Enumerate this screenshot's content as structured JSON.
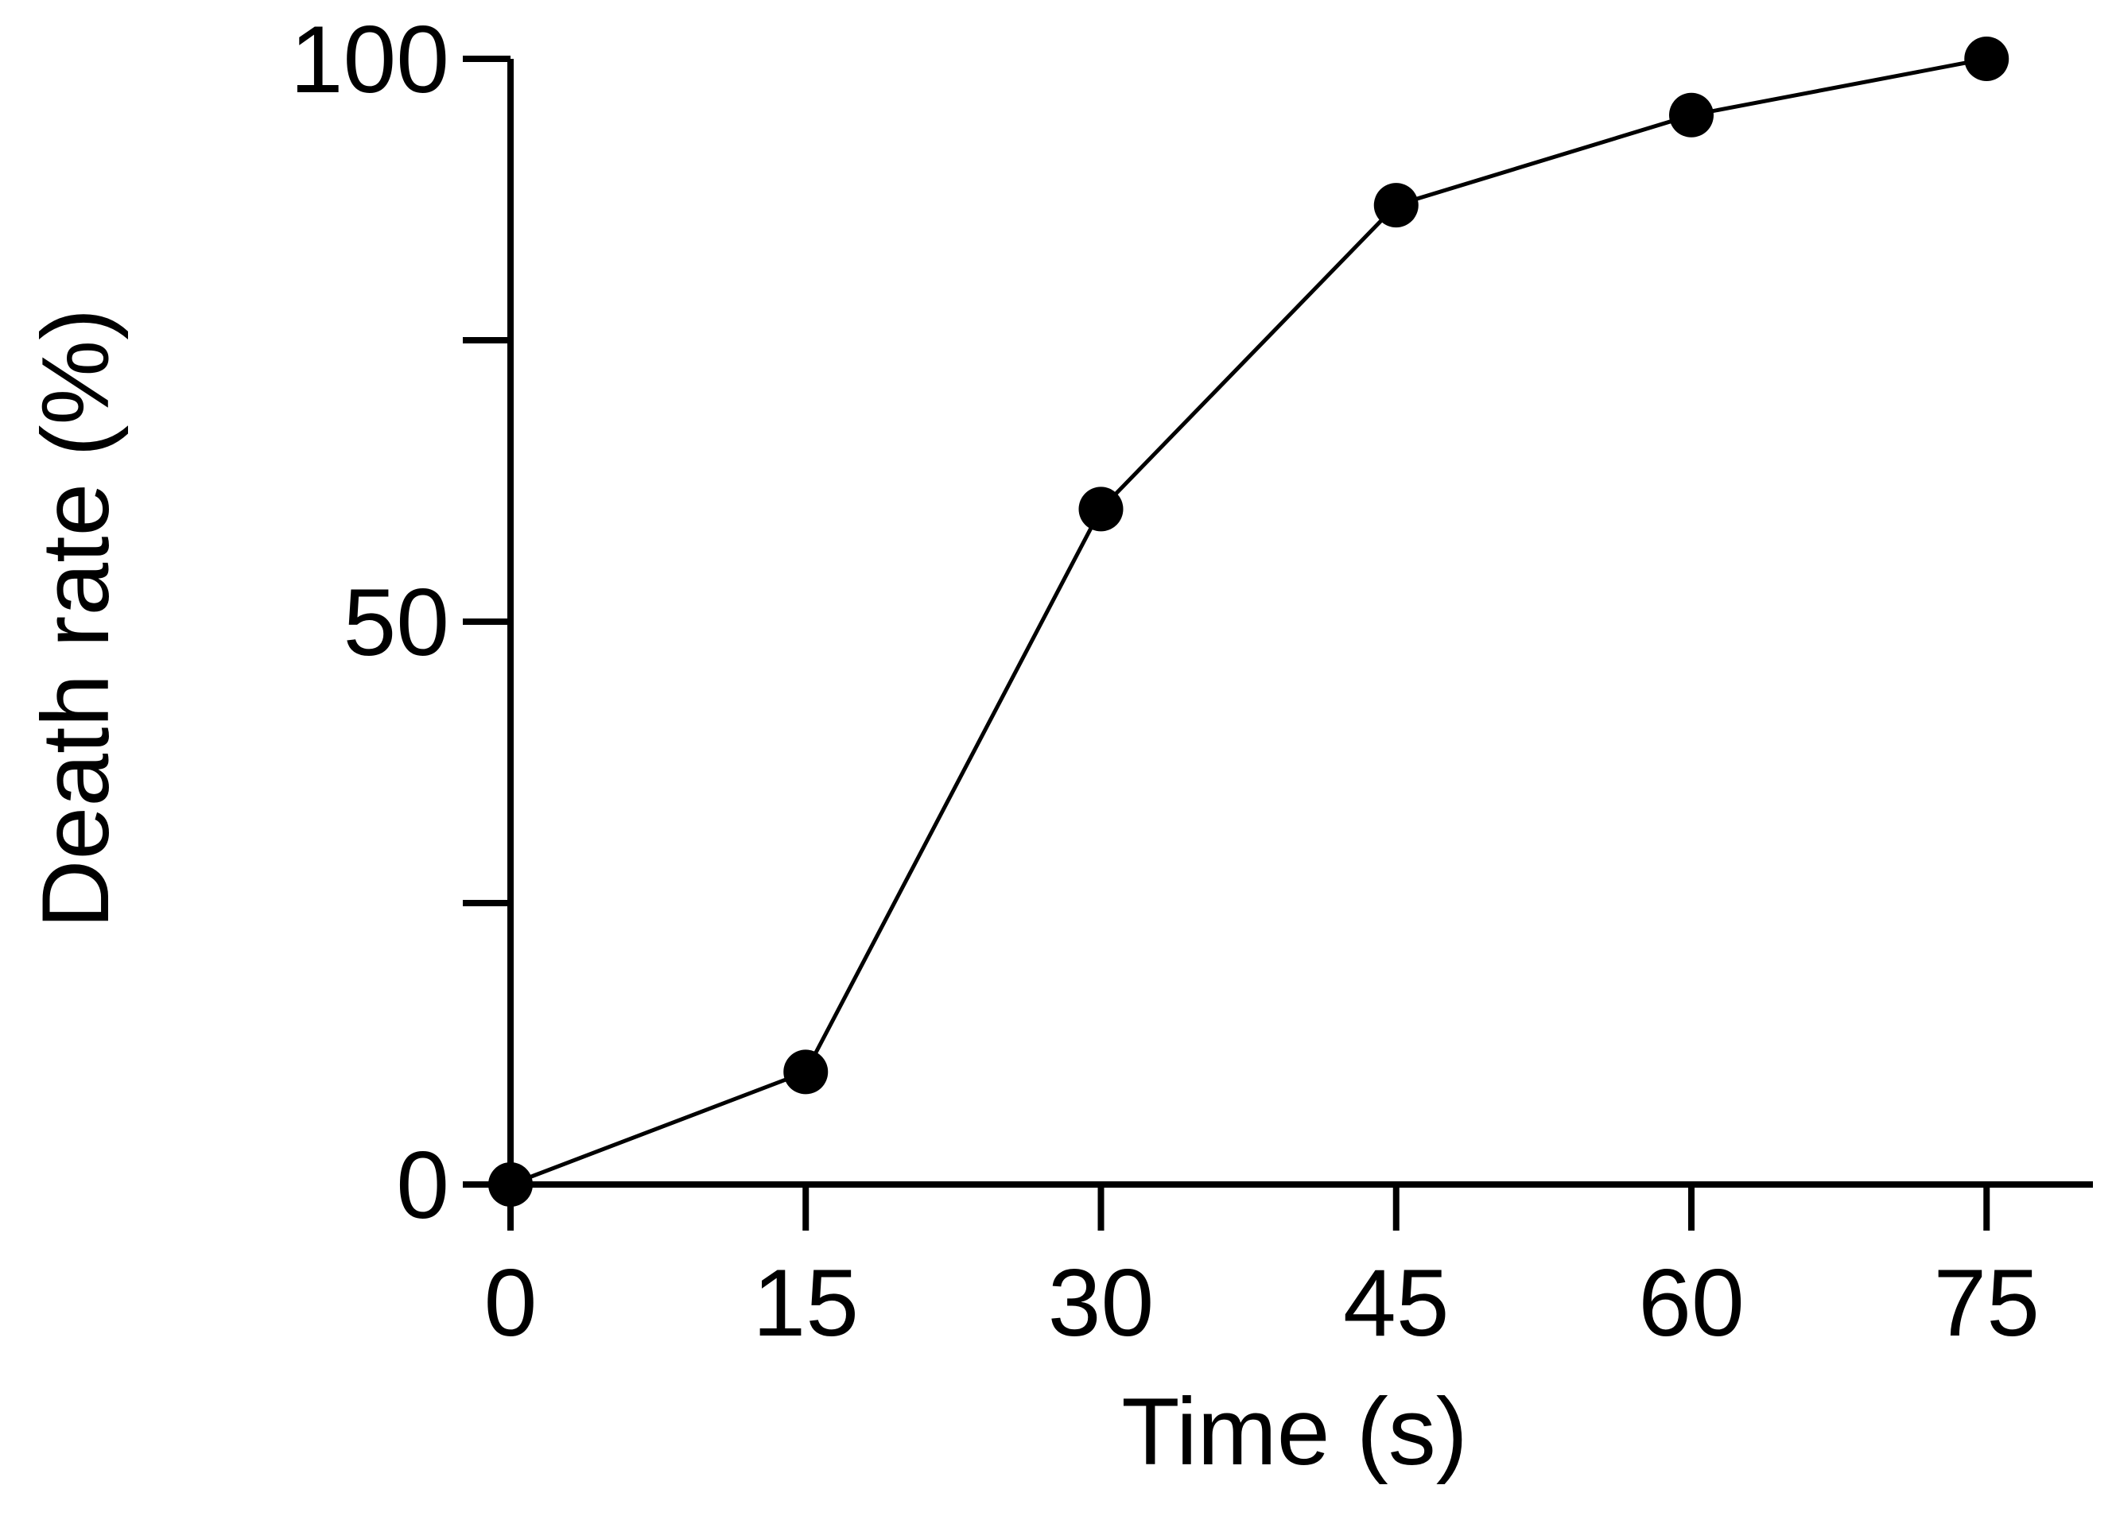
{
  "chart_data": {
    "type": "line",
    "title": "",
    "xlabel": "Time (s)",
    "ylabel": "Death rate (%)",
    "x": [
      0,
      15,
      30,
      45,
      60,
      75
    ],
    "series": [
      {
        "values": [
          0,
          10,
          60,
          87,
          95,
          100
        ]
      }
    ],
    "xlim": [
      0,
      80
    ],
    "ylim": [
      0,
      100
    ],
    "x_ticks": [
      0,
      15,
      30,
      45,
      60,
      75
    ],
    "x_tick_labels": [
      "0",
      "15",
      "30",
      "45",
      "60",
      "75"
    ],
    "y_ticks": [
      0,
      25,
      50,
      75,
      100
    ],
    "y_tick_labels": [
      "0",
      "",
      "50",
      "",
      "100"
    ],
    "grid": false,
    "legend": "none",
    "colors": {
      "line": "#000000",
      "marker": "#000000",
      "axis": "#000000"
    }
  }
}
